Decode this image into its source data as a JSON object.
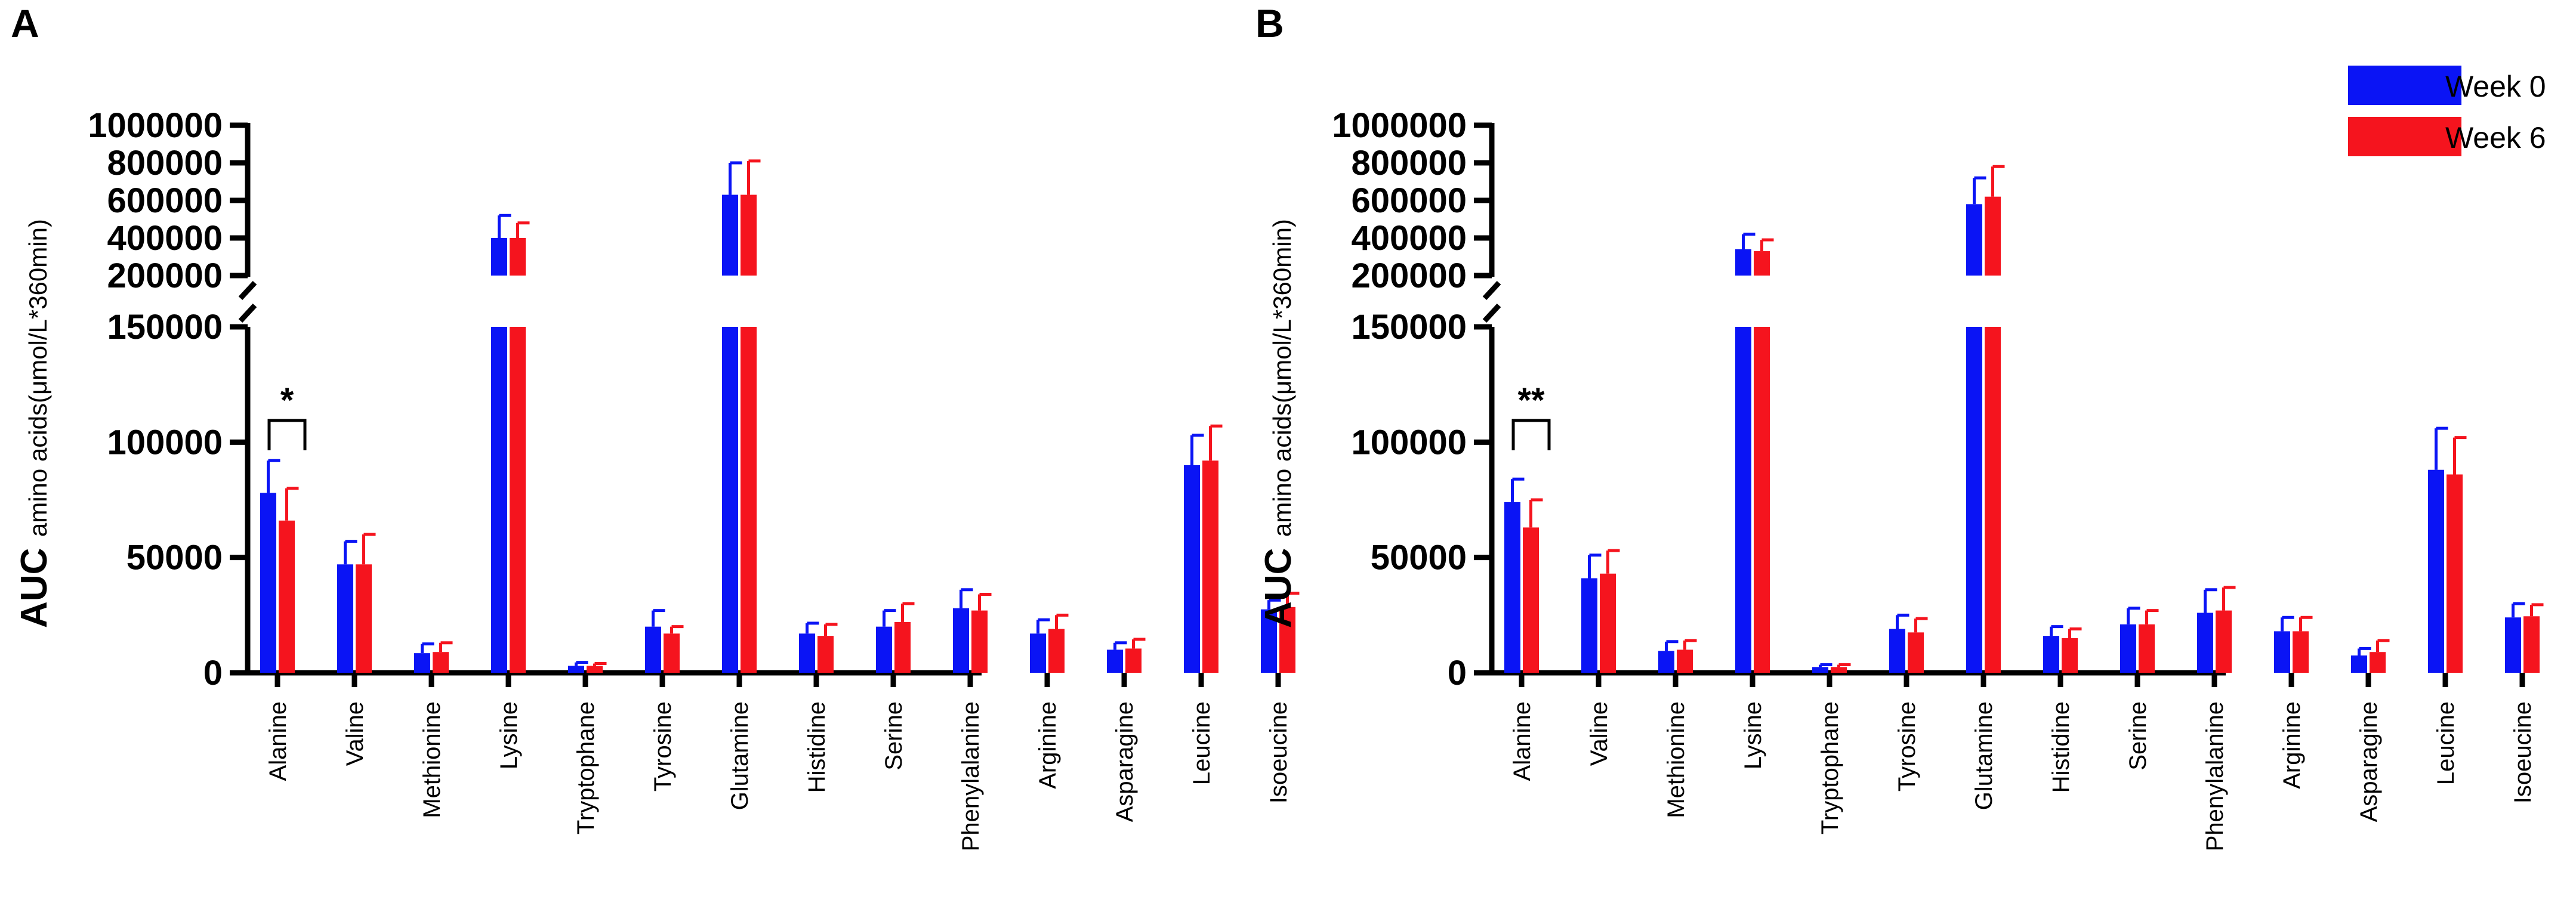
{
  "legend": {
    "items": [
      {
        "label": "Week 0",
        "color": "#0a14f5"
      },
      {
        "label": "Week 6",
        "color": "#f5141e"
      }
    ]
  },
  "chart_data": [
    {
      "type": "bar",
      "panel": "A",
      "ylabel_main": "AUC",
      "ylabel_sub": "amino acids(μmol/L*360min)",
      "y_axis_broken": true,
      "lower_ylim": [
        0,
        150000
      ],
      "upper_ylim": [
        200000,
        1000000
      ],
      "lower_ticks": [
        {
          "value": 0,
          "label": "0"
        },
        {
          "value": 50000,
          "label": "50000"
        },
        {
          "value": 100000,
          "label": "100000"
        },
        {
          "value": 150000,
          "label": "150000"
        }
      ],
      "upper_ticks": [
        {
          "value": 200000,
          "label": "200000"
        },
        {
          "value": 400000,
          "label": "400000"
        },
        {
          "value": 600000,
          "label": "600000"
        },
        {
          "value": 800000,
          "label": "800000"
        },
        {
          "value": 1000000,
          "label": "1000000"
        }
      ],
      "categories": [
        "Alanine",
        "Valine",
        "Methionine",
        "Lysine",
        "Tryptophane",
        "Tyrosine",
        "Glutamine",
        "Histidine",
        "Serine",
        "Phenylalanine",
        "Arginine",
        "Asparagine",
        "Leucine",
        "Isoeucine"
      ],
      "series": [
        {
          "name": "Week 0",
          "values": [
            78000,
            47000,
            8500,
            400000,
            3000,
            20000,
            630000,
            17000,
            20000,
            28000,
            17000,
            10000,
            90000,
            27500
          ],
          "errors": [
            14000,
            10000,
            4000,
            120000,
            1500,
            7000,
            170000,
            4500,
            7000,
            8000,
            6000,
            3000,
            13000,
            4000
          ]
        },
        {
          "name": "Week 6",
          "values": [
            66000,
            47000,
            9000,
            400000,
            3000,
            17000,
            630000,
            16000,
            22000,
            27000,
            19000,
            10500,
            92000,
            28500
          ],
          "errors": [
            14000,
            13000,
            4000,
            80000,
            1000,
            3000,
            180000,
            5000,
            8000,
            7000,
            6000,
            4000,
            15000,
            6000
          ]
        }
      ],
      "annotations": [
        {
          "category": "Alanine",
          "text": "*"
        }
      ]
    },
    {
      "type": "bar",
      "panel": "B",
      "ylabel_main": "AUC",
      "ylabel_sub": "amino acids(μmol/L*360min)",
      "y_axis_broken": true,
      "lower_ylim": [
        0,
        150000
      ],
      "upper_ylim": [
        200000,
        1000000
      ],
      "lower_ticks": [
        {
          "value": 0,
          "label": "0"
        },
        {
          "value": 50000,
          "label": "50000"
        },
        {
          "value": 100000,
          "label": "100000"
        },
        {
          "value": 150000,
          "label": "150000"
        }
      ],
      "upper_ticks": [
        {
          "value": 200000,
          "label": "200000"
        },
        {
          "value": 400000,
          "label": "400000"
        },
        {
          "value": 600000,
          "label": "600000"
        },
        {
          "value": 800000,
          "label": "800000"
        },
        {
          "value": 1000000,
          "label": "1000000"
        }
      ],
      "categories": [
        "Alanine",
        "Valine",
        "Methionine",
        "Lysine",
        "Tryptophane",
        "Tyrosine",
        "Glutamine",
        "Histidine",
        "Serine",
        "Phenylalanine",
        "Arginine",
        "Asparagine",
        "Leucine",
        "Isoeucine"
      ],
      "series": [
        {
          "name": "Week 0",
          "values": [
            74000,
            41000,
            9500,
            340000,
            2500,
            19000,
            580000,
            16000,
            21000,
            26000,
            18000,
            7500,
            88000,
            24000
          ],
          "errors": [
            10000,
            10000,
            4000,
            80000,
            1000,
            6000,
            140000,
            4000,
            7000,
            10000,
            6000,
            3000,
            18000,
            6000
          ]
        },
        {
          "name": "Week 6",
          "values": [
            63000,
            43000,
            10000,
            330000,
            2500,
            17500,
            620000,
            15000,
            21000,
            27000,
            18000,
            9000,
            86000,
            24500
          ],
          "errors": [
            12000,
            10000,
            4000,
            60000,
            1000,
            6000,
            160000,
            4000,
            6000,
            10000,
            6000,
            5000,
            16000,
            5000
          ]
        }
      ],
      "annotations": [
        {
          "category": "Alanine",
          "text": "**"
        }
      ]
    }
  ]
}
